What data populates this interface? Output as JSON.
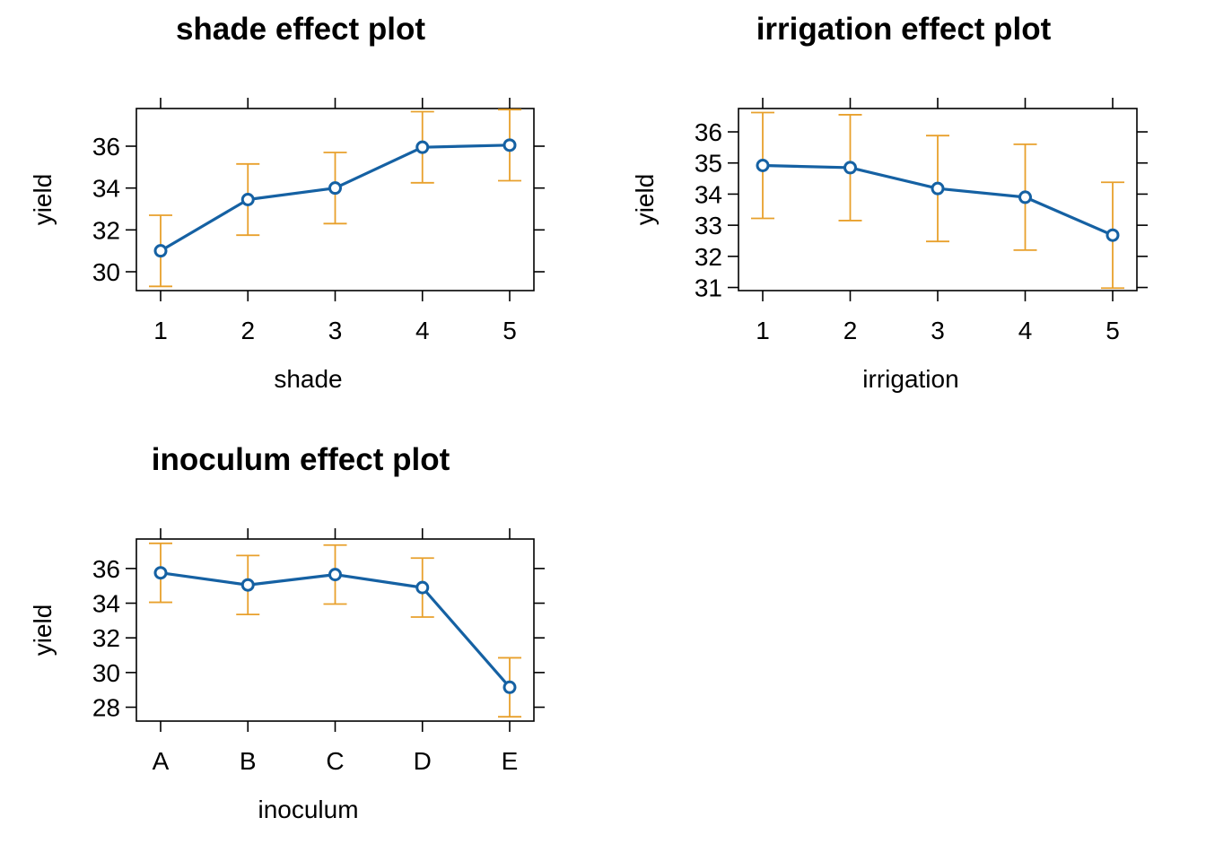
{
  "colors": {
    "line": "#1561a3",
    "error_bar": "#e8a02c",
    "axis": "#000000"
  },
  "chart_data": [
    {
      "type": "line",
      "title": "shade effect plot",
      "xlabel": "shade",
      "ylabel": "yield",
      "categories": [
        "1",
        "2",
        "3",
        "4",
        "5"
      ],
      "values": [
        31.0,
        33.45,
        34.0,
        35.95,
        36.05
      ],
      "lower": [
        29.3,
        31.75,
        32.3,
        34.25,
        34.35
      ],
      "upper": [
        32.7,
        35.15,
        35.7,
        37.65,
        37.75
      ],
      "yticks": [
        30,
        32,
        34,
        36
      ],
      "ylim": [
        29.1,
        37.8
      ],
      "grid": false,
      "error_bars": true
    },
    {
      "type": "line",
      "title": "irrigation effect plot",
      "xlabel": "irrigation",
      "ylabel": "yield",
      "categories": [
        "1",
        "2",
        "3",
        "4",
        "5"
      ],
      "values": [
        34.92,
        34.85,
        34.18,
        33.9,
        32.68
      ],
      "lower": [
        33.22,
        33.15,
        32.48,
        32.2,
        30.98
      ],
      "upper": [
        36.62,
        36.55,
        35.88,
        35.6,
        34.38
      ],
      "yticks": [
        31,
        32,
        33,
        34,
        35,
        36
      ],
      "ylim": [
        30.9,
        36.75
      ],
      "grid": false,
      "error_bars": true
    },
    {
      "type": "line",
      "title": "inoculum effect plot",
      "xlabel": "inoculum",
      "ylabel": "yield",
      "categories": [
        "A",
        "B",
        "C",
        "D",
        "E"
      ],
      "values": [
        35.75,
        35.05,
        35.65,
        34.9,
        29.15
      ],
      "lower": [
        34.05,
        33.35,
        33.95,
        33.2,
        27.45
      ],
      "upper": [
        37.45,
        36.75,
        37.35,
        36.6,
        30.85
      ],
      "yticks": [
        28,
        30,
        32,
        34,
        36
      ],
      "ylim": [
        27.2,
        37.7
      ],
      "grid": false,
      "error_bars": true
    }
  ]
}
